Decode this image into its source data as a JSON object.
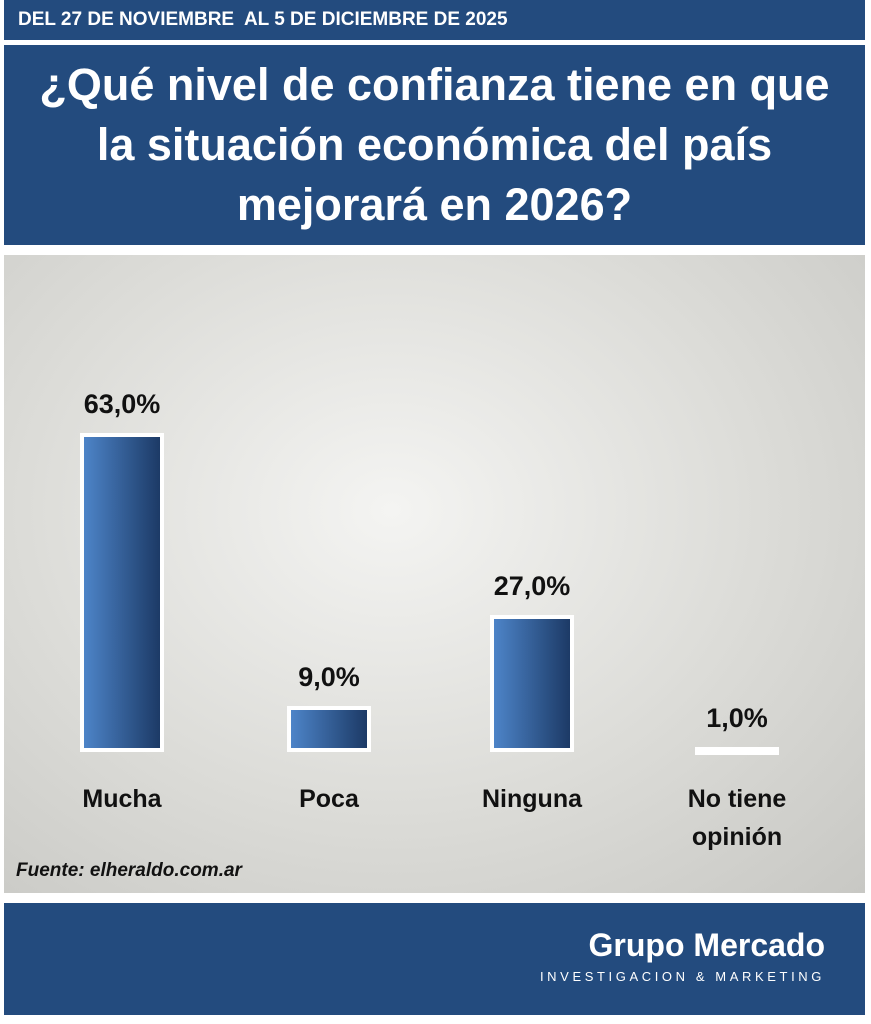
{
  "header": {
    "date_range": "DEL 27 DE NOVIEMBRE  AL 5 DE DICIEMBRE DE 2025"
  },
  "chart_data": {
    "type": "bar",
    "title": "¿Qué nivel de confianza tiene en que la situación económica del país mejorará en 2026?",
    "categories": [
      "Mucha",
      "Poca",
      "Ninguna",
      "No tiene opinión"
    ],
    "values": [
      63,
      9,
      27,
      1
    ],
    "value_labels": [
      "63,0%",
      "9,0%",
      "27,0%",
      "1,0%"
    ],
    "source": "Fuente: elheraldo.com.ar"
  },
  "footer": {
    "brand": "Grupo Mercado",
    "tagline": "INVESTIGACION & MARKETING"
  }
}
